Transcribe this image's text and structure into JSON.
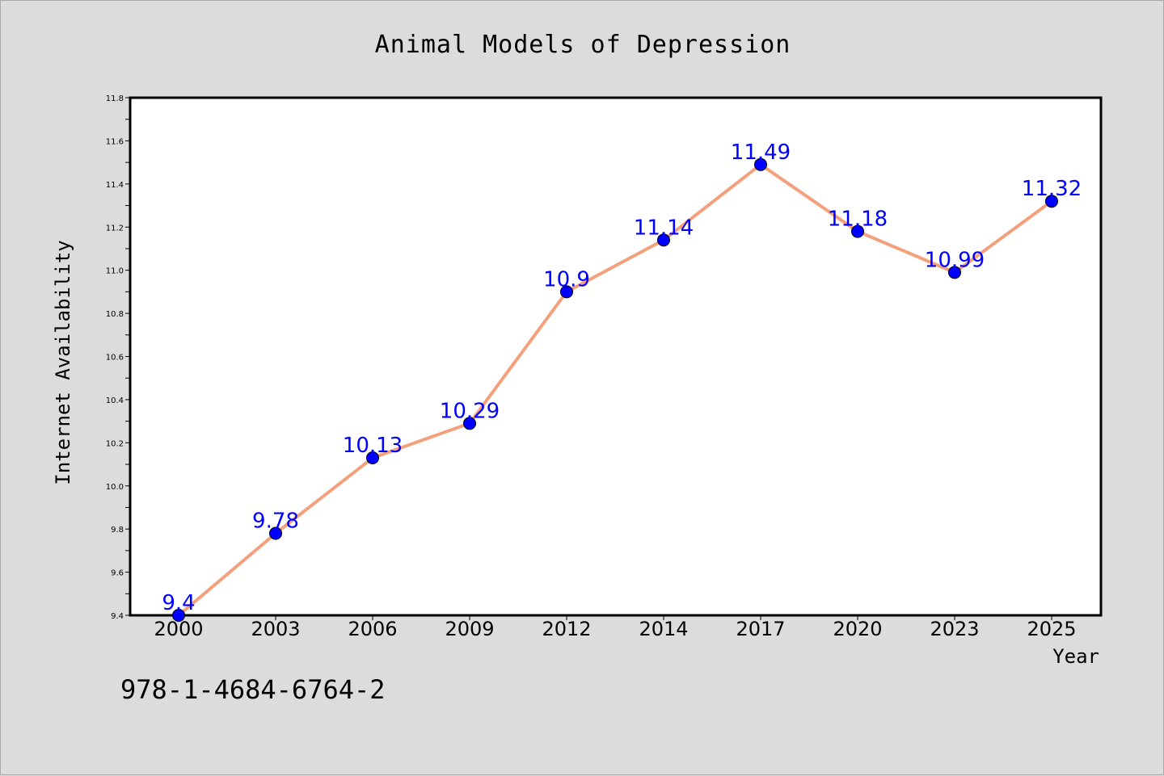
{
  "chart_data": {
    "type": "line",
    "title": "Animal Models of Depression",
    "xlabel": "Year",
    "ylabel": "Internet Availability",
    "categories": [
      "2000",
      "2003",
      "2006",
      "2009",
      "2012",
      "2014",
      "2017",
      "2020",
      "2023",
      "2025"
    ],
    "series": [
      {
        "values": [
          9.4,
          9.78,
          10.13,
          10.29,
          10.9,
          11.14,
          11.49,
          11.18,
          10.99,
          11.32
        ],
        "data_labels": [
          "9.4",
          "9.78",
          "10.13",
          "10.29",
          "10.9",
          "11.14",
          "11.49",
          "11.18",
          "10.99",
          "11.32"
        ]
      }
    ],
    "ylim": [
      9.4,
      11.8
    ],
    "yticks": [
      "9.4",
      "9.6",
      "9.8",
      "10.0",
      "10.2",
      "10.4",
      "10.6",
      "10.8",
      "11.0",
      "11.2",
      "11.4",
      "11.6",
      "11.8"
    ],
    "grid": false,
    "legend": "none",
    "colors": {
      "line": "#f4a07c",
      "marker": "#0000ff",
      "data_label": "#0000ff",
      "background": "#dcdcdc",
      "plot_background": "#ffffff"
    }
  },
  "footnote": "978-1-4684-6764-2"
}
